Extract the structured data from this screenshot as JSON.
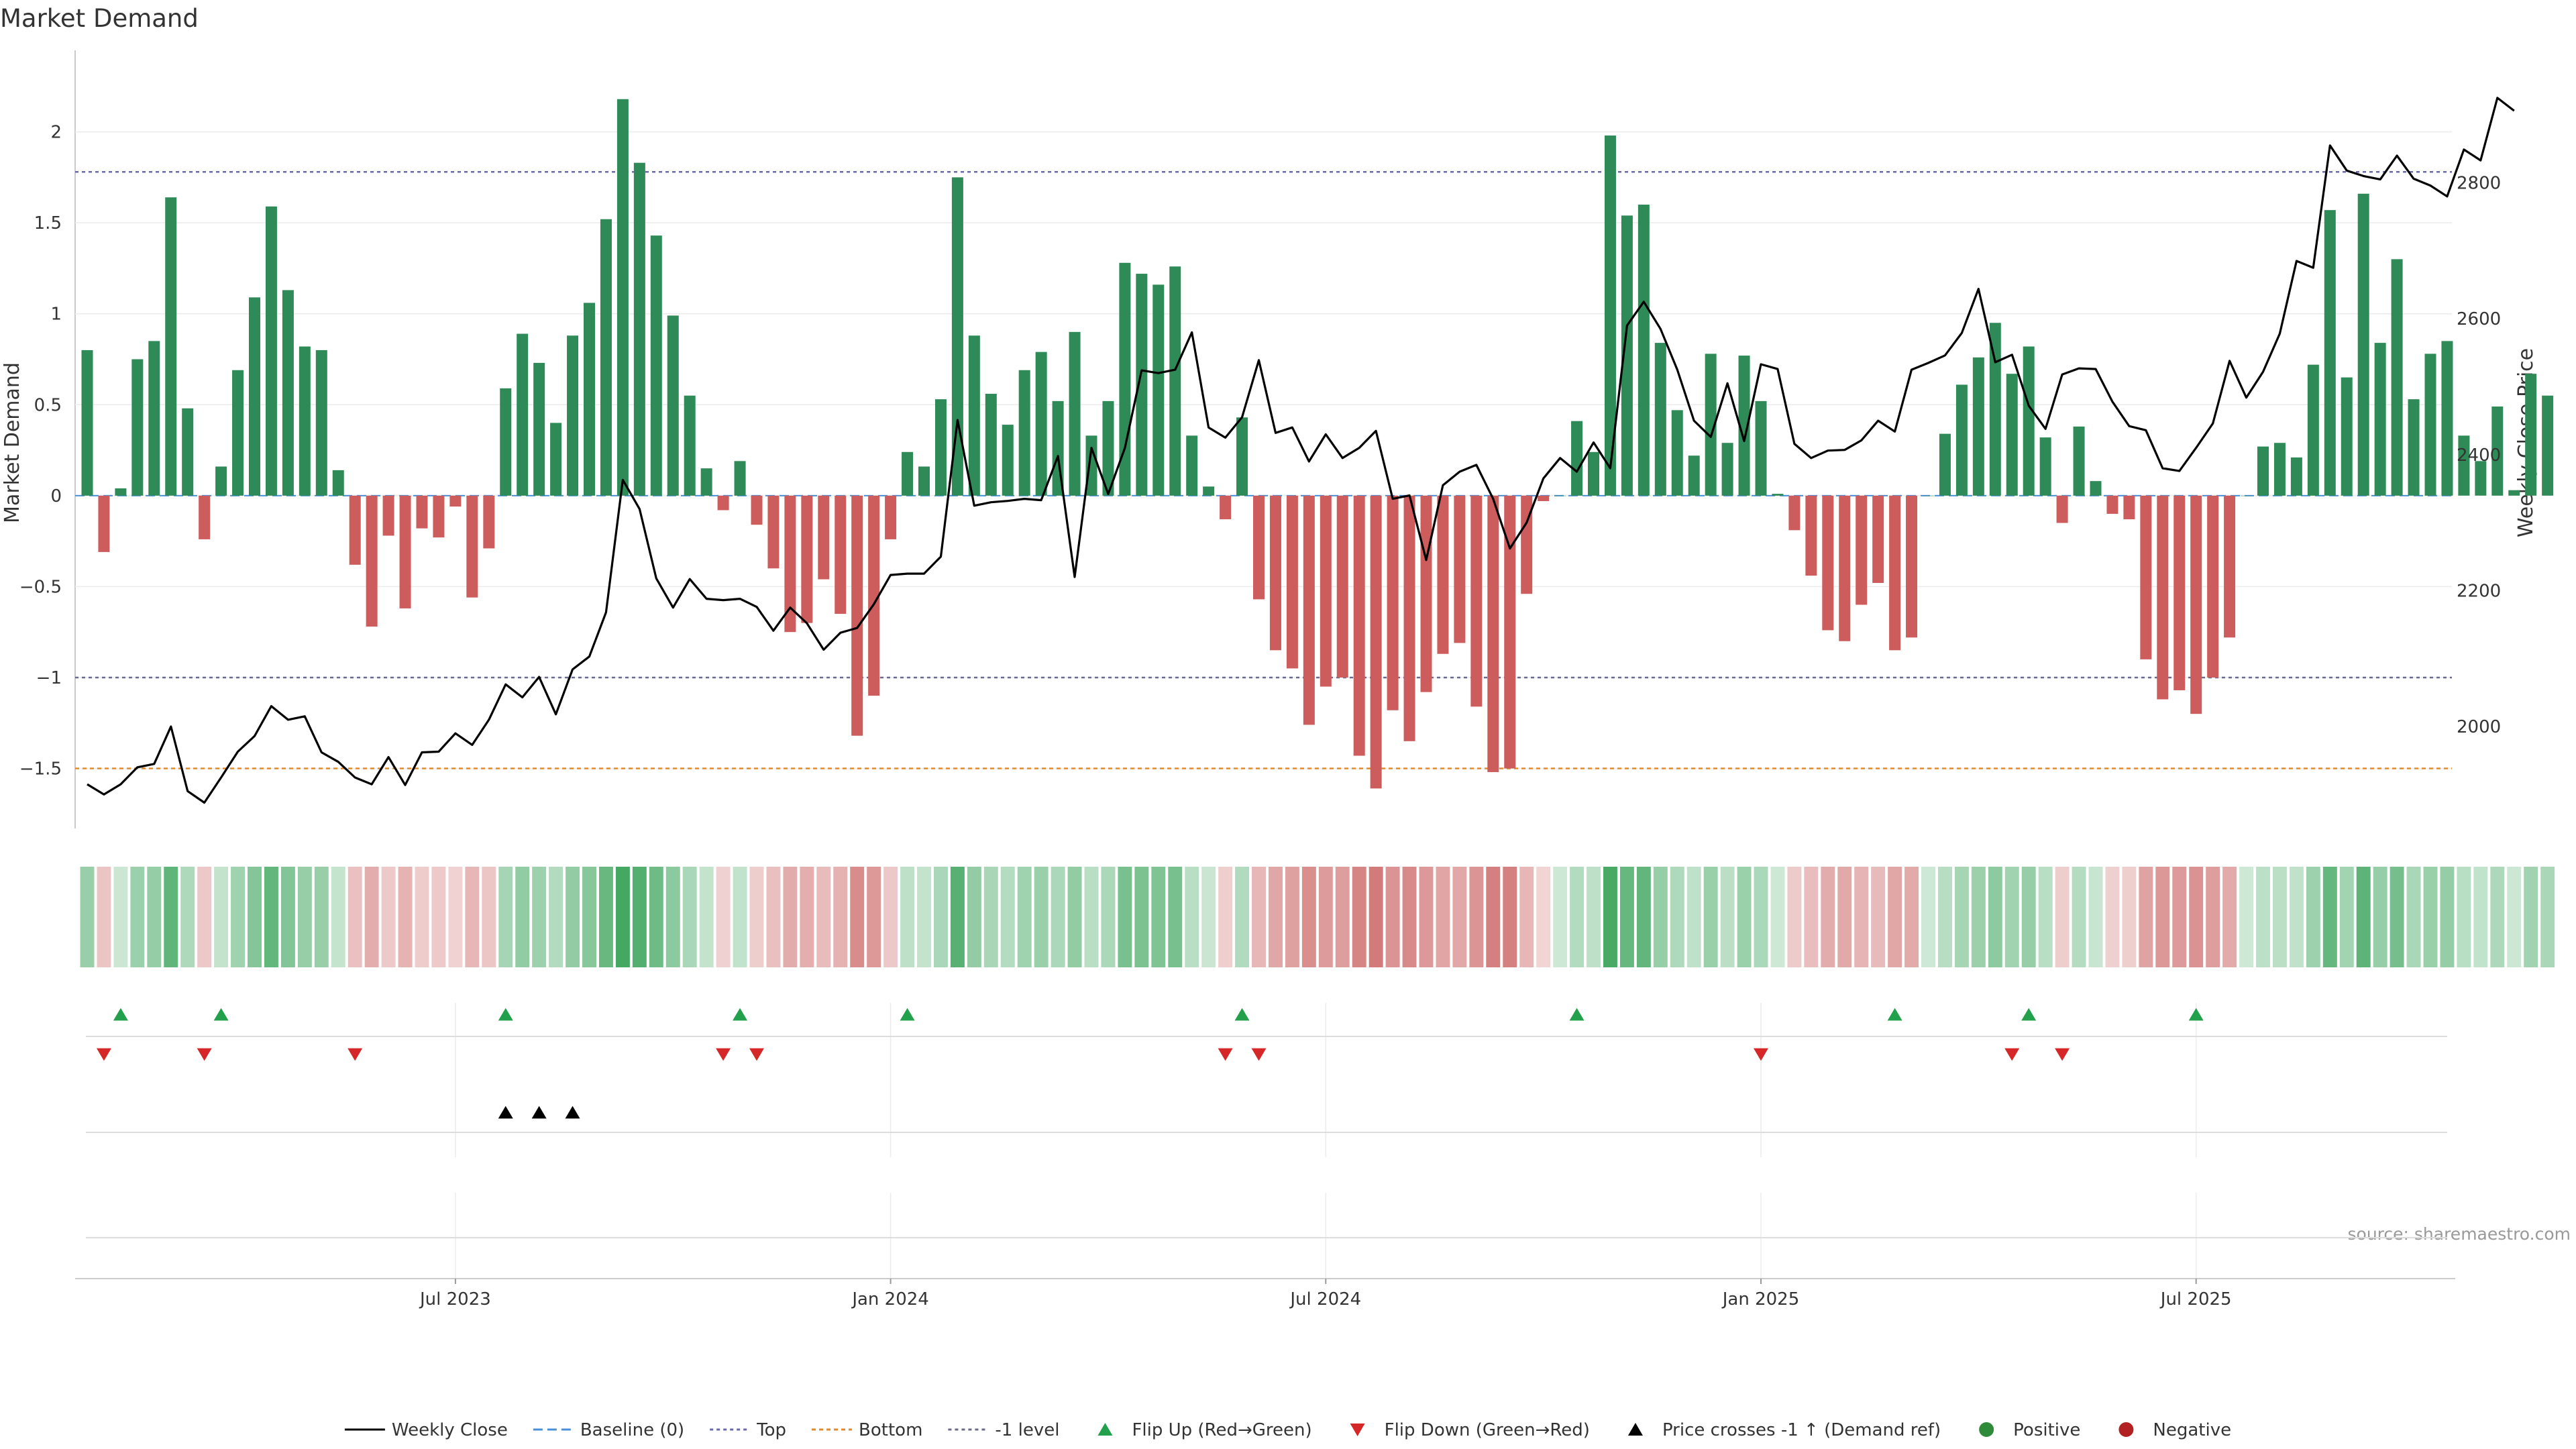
{
  "chart_data": {
    "type": "bar",
    "title": "Market Demand",
    "ylabel": "Market Demand",
    "y2label": "Weekly Close Price",
    "source": "source: sharemaestro.com",
    "ylim": [
      -1.83,
      2.43
    ],
    "y2lim": [
      1850,
      2990
    ],
    "yticks": [
      2,
      1.5,
      1,
      0.5,
      0,
      -0.5,
      -1,
      -1.5
    ],
    "y2ticks": [
      2800,
      2600,
      2400,
      2200,
      2000
    ],
    "xticks": [
      {
        "label": "Jul 2023",
        "week": 22
      },
      {
        "label": "Jan 2024",
        "week": 48
      },
      {
        "label": "Jul 2024",
        "week": 74
      },
      {
        "label": "Jan 2025",
        "week": 100
      },
      {
        "label": "Jul 2025",
        "week": 126
      }
    ],
    "reference_lines": {
      "top": 1.78,
      "bottom": -1.5,
      "minus_one": -1,
      "baseline": 0
    },
    "colors": {
      "positive": "#2e8b57",
      "negative": "#cd5c5c",
      "line": "#000000",
      "top": "#6a6aa8",
      "bottom": "#e08a2e",
      "minus_one": "#6a6a8a",
      "baseline": "#4a90d9",
      "flip_up": "#22a04b",
      "flip_down": "#d62728",
      "cross": "#000000"
    },
    "demand": [
      0.8,
      -0.31,
      0.04,
      0.75,
      0.85,
      1.64,
      0.48,
      -0.24,
      0.16,
      0.69,
      1.09,
      1.59,
      1.13,
      0.82,
      0.8,
      0.14,
      -0.38,
      -0.72,
      -0.22,
      -0.62,
      -0.18,
      -0.23,
      -0.06,
      -0.56,
      -0.29,
      0.59,
      0.89,
      0.73,
      0.4,
      0.88,
      1.06,
      1.52,
      2.18,
      1.83,
      1.43,
      0.99,
      0.55,
      0.15,
      -0.08,
      0.19,
      -0.16,
      -0.4,
      -0.75,
      -0.7,
      -0.46,
      -0.65,
      -1.32,
      -1.1,
      -0.24,
      0.24,
      0.16,
      0.53,
      1.75,
      0.88,
      0.56,
      0.39,
      0.69,
      0.79,
      0.52,
      0.9,
      0.33,
      0.52,
      1.28,
      1.22,
      1.16,
      1.26,
      0.33,
      0.05,
      -0.13,
      0.43,
      -0.57,
      -0.85,
      -0.95,
      -1.26,
      -1.05,
      -1.0,
      -1.43,
      -1.61,
      -1.18,
      -1.35,
      -1.08,
      -0.87,
      -0.81,
      -1.16,
      -1.52,
      -1.5,
      -0.54,
      -0.03,
      0.0,
      0.41,
      0.24,
      1.98,
      1.54,
      1.6,
      0.84,
      0.47,
      0.22,
      0.78,
      0.29,
      0.77,
      0.52,
      0.01,
      -0.19,
      -0.44,
      -0.74,
      -0.8,
      -0.6,
      -0.48,
      -0.85,
      -0.78,
      0.0,
      0.34,
      0.61,
      0.76,
      0.95,
      0.67,
      0.82,
      0.32,
      -0.15,
      0.38,
      0.08,
      -0.1,
      -0.13,
      -0.9,
      -1.12,
      -1.07,
      -1.2,
      -1.0,
      -0.78,
      0.0,
      0.27,
      0.29,
      0.21,
      0.72,
      1.57,
      0.65,
      1.66,
      0.84,
      1.3,
      0.53,
      0.78,
      0.85,
      0.33,
      0.19,
      0.49,
      0.03,
      0.67,
      0.55
    ],
    "price": [
      1915,
      1900,
      1915,
      1940,
      1945,
      2000,
      1905,
      1888,
      1925,
      1963,
      1986,
      2030,
      2010,
      2015,
      1962,
      1948,
      1925,
      1915,
      1955,
      1914,
      1962,
      1963,
      1990,
      1973,
      2010,
      2062,
      2043,
      2073,
      2018,
      2084,
      2103,
      2168,
      2363,
      2320,
      2218,
      2175,
      2217,
      2188,
      2186,
      2188,
      2176,
      2141,
      2175,
      2152,
      2113,
      2138,
      2145,
      2180,
      2223,
      2225,
      2225,
      2250,
      2451,
      2325,
      2330,
      2332,
      2335,
      2333,
      2398,
      2220,
      2410,
      2342,
      2410,
      2524,
      2520,
      2525,
      2580,
      2440,
      2425,
      2455,
      2539,
      2432,
      2440,
      2390,
      2430,
      2395,
      2410,
      2435,
      2335,
      2340,
      2245,
      2355,
      2375,
      2385,
      2335,
      2262,
      2300,
      2365,
      2395,
      2375,
      2418,
      2380,
      2590,
      2625,
      2585,
      2525,
      2450,
      2426,
      2505,
      2420,
      2533,
      2526,
      2416,
      2395,
      2406,
      2407,
      2421,
      2450,
      2434,
      2525,
      2535,
      2546,
      2579,
      2644,
      2536,
      2547,
      2472,
      2438,
      2518,
      2527,
      2526,
      2478,
      2442,
      2436,
      2380,
      2376,
      2410,
      2446,
      2538,
      2484,
      2522,
      2578,
      2685,
      2675,
      2855,
      2818,
      2810,
      2805,
      2840,
      2806,
      2796,
      2780,
      2849,
      2833,
      2925,
      2906
    ],
    "flip_up_weeks": [
      2,
      8,
      25,
      39,
      49,
      69,
      89,
      108,
      116,
      126
    ],
    "flip_down_weeks": [
      1,
      7,
      16,
      38,
      40,
      68,
      70,
      100,
      115,
      118
    ],
    "price_cross_weeks": [
      25,
      27,
      29
    ],
    "legend": [
      {
        "label": "Weekly Close",
        "kind": "line-solid"
      },
      {
        "label": "Baseline (0)",
        "kind": "line-dash-blue"
      },
      {
        "label": "Top",
        "kind": "line-dot-purple"
      },
      {
        "label": "Bottom",
        "kind": "line-dot-orange"
      },
      {
        "label": "-1 level",
        "kind": "line-dot-gray"
      },
      {
        "label": "Flip Up (Red→Green)",
        "kind": "tri-up-green"
      },
      {
        "label": "Flip Down (Green→Red)",
        "kind": "tri-down-red"
      },
      {
        "label": "Price crosses -1 ↑ (Demand ref)",
        "kind": "tri-up-black"
      },
      {
        "label": "Positive",
        "kind": "dot-green"
      },
      {
        "label": "Negative",
        "kind": "dot-red"
      }
    ]
  }
}
